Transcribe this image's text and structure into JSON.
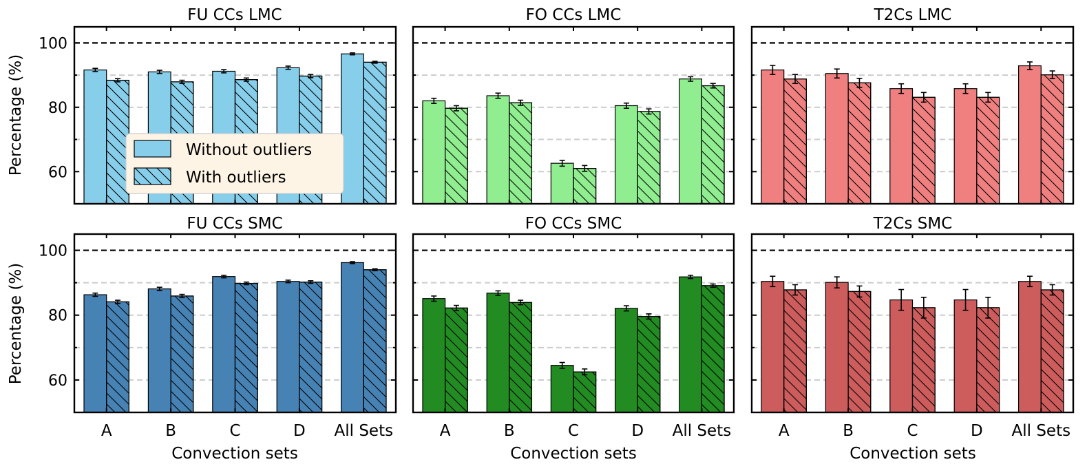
{
  "figure": {
    "ylabel": "Percentage (%)",
    "xlabel": "Convection sets",
    "legend": {
      "placement": "center-left of first panel",
      "entries": [
        {
          "label": "Without outliers",
          "hatch": false
        },
        {
          "label": "With outliers",
          "hatch": true
        }
      ]
    }
  },
  "chart_data": [
    {
      "type": "bar",
      "title": "FU CCs LMC",
      "color": "#87ceeb",
      "categories": [
        "A",
        "B",
        "C",
        "D",
        "All Sets"
      ],
      "ylim": [
        50,
        105
      ],
      "yticks": [
        60,
        80,
        100
      ],
      "reference_line": 100,
      "grid": "dashed y at 60,70,80,90",
      "series": [
        {
          "name": "Without outliers",
          "values": [
            91.6,
            91.0,
            91.2,
            92.3,
            96.6
          ],
          "errors": [
            0.5,
            0.5,
            0.5,
            0.5,
            0.3
          ]
        },
        {
          "name": "With outliers",
          "values": [
            88.4,
            87.9,
            88.6,
            89.7,
            94.0
          ],
          "errors": [
            0.5,
            0.5,
            0.5,
            0.5,
            0.3
          ]
        }
      ]
    },
    {
      "type": "bar",
      "title": "FO CCs LMC",
      "color": "#90ee90",
      "categories": [
        "A",
        "B",
        "C",
        "D",
        "All Sets"
      ],
      "ylim": [
        50,
        105
      ],
      "yticks": [
        60,
        80,
        100
      ],
      "reference_line": 100,
      "grid": "dashed y at 60,70,80,90",
      "series": [
        {
          "name": "Without outliers",
          "values": [
            82.0,
            83.6,
            62.6,
            80.5,
            88.8
          ],
          "errors": [
            0.8,
            0.8,
            0.9,
            0.8,
            0.7
          ]
        },
        {
          "name": "With outliers",
          "values": [
            79.7,
            81.4,
            61.0,
            78.7,
            86.7
          ],
          "errors": [
            0.8,
            0.8,
            0.9,
            0.8,
            0.7
          ]
        }
      ]
    },
    {
      "type": "bar",
      "title": "T2Cs LMC",
      "color": "#f08080",
      "categories": [
        "A",
        "B",
        "C",
        "D",
        "All Sets"
      ],
      "ylim": [
        50,
        105
      ],
      "yticks": [
        60,
        80,
        100
      ],
      "reference_line": 100,
      "grid": "dashed y at 60,70,80,90",
      "series": [
        {
          "name": "Without outliers",
          "values": [
            91.6,
            90.5,
            85.8,
            85.8,
            92.9
          ],
          "errors": [
            1.4,
            1.4,
            1.5,
            1.5,
            1.2
          ]
        },
        {
          "name": "With outliers",
          "values": [
            88.8,
            87.6,
            83.1,
            83.1,
            90.1
          ],
          "errors": [
            1.4,
            1.4,
            1.5,
            1.5,
            1.2
          ]
        }
      ]
    },
    {
      "type": "bar",
      "title": "FU CCs SMC",
      "color": "#4682b4",
      "categories": [
        "A",
        "B",
        "C",
        "D",
        "All Sets"
      ],
      "ylim": [
        50,
        105
      ],
      "yticks": [
        60,
        80,
        100
      ],
      "reference_line": 100,
      "grid": "dashed y at 60,70,80,90",
      "series": [
        {
          "name": "Without outliers",
          "values": [
            86.3,
            88.1,
            91.9,
            90.4,
            96.2
          ],
          "errors": [
            0.5,
            0.5,
            0.4,
            0.4,
            0.3
          ]
        },
        {
          "name": "With outliers",
          "values": [
            84.1,
            85.9,
            89.8,
            90.2,
            94.0
          ],
          "errors": [
            0.5,
            0.5,
            0.4,
            0.4,
            0.3
          ]
        }
      ]
    },
    {
      "type": "bar",
      "title": "FO CCs SMC",
      "color": "#228b22",
      "categories": [
        "A",
        "B",
        "C",
        "D",
        "All Sets"
      ],
      "ylim": [
        50,
        105
      ],
      "yticks": [
        60,
        80,
        100
      ],
      "reference_line": 100,
      "grid": "dashed y at 60,70,80,90",
      "series": [
        {
          "name": "Without outliers",
          "values": [
            85.1,
            86.8,
            64.5,
            82.1,
            91.8
          ],
          "errors": [
            0.8,
            0.7,
            0.9,
            0.8,
            0.5
          ]
        },
        {
          "name": "With outliers",
          "values": [
            82.2,
            83.9,
            62.5,
            79.6,
            89.1
          ],
          "errors": [
            0.8,
            0.7,
            0.9,
            0.8,
            0.5
          ]
        }
      ]
    },
    {
      "type": "bar",
      "title": "T2Cs SMC",
      "color": "#cd5c5c",
      "categories": [
        "A",
        "B",
        "C",
        "D",
        "All Sets"
      ],
      "ylim": [
        50,
        105
      ],
      "yticks": [
        60,
        80,
        100
      ],
      "reference_line": 100,
      "grid": "dashed y at 60,70,80,90",
      "series": [
        {
          "name": "Without outliers",
          "values": [
            90.4,
            90.1,
            84.7,
            84.7,
            90.4
          ],
          "errors": [
            1.6,
            1.7,
            3.2,
            3.2,
            1.6
          ]
        },
        {
          "name": "With outliers",
          "values": [
            87.8,
            87.3,
            82.3,
            82.3,
            87.8
          ],
          "errors": [
            1.6,
            1.7,
            3.2,
            3.2,
            1.6
          ]
        }
      ]
    }
  ]
}
